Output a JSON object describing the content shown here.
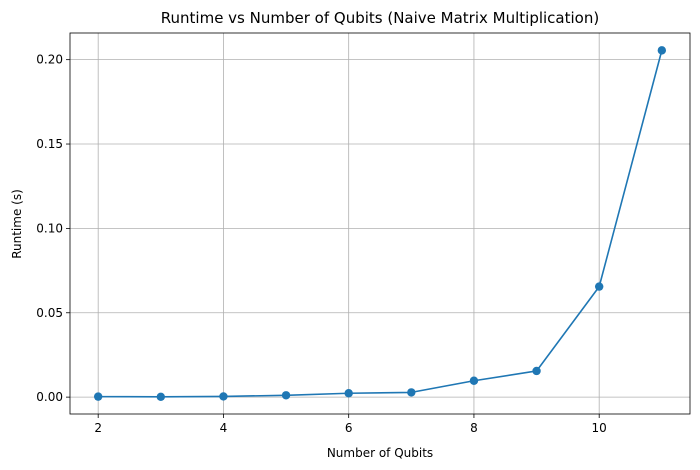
{
  "chart_data": {
    "type": "line",
    "title": "Runtime vs Number of Qubits (Naive Matrix Multiplication)",
    "xlabel": "Number of Qubits",
    "ylabel": "Runtime (s)",
    "x": [
      2,
      3,
      4,
      5,
      6,
      7,
      8,
      9,
      10,
      11
    ],
    "series": [
      {
        "values": [
          0.0003,
          0.0002,
          0.0004,
          0.0011,
          0.0023,
          0.0028,
          0.0097,
          0.0155,
          0.0655,
          0.2055
        ],
        "color": "#1f77b4",
        "marker": "circle"
      }
    ],
    "xlim": [
      1.55,
      11.45
    ],
    "ylim": [
      -0.01,
      0.2158
    ],
    "xticks": [
      2,
      4,
      6,
      8,
      10
    ],
    "xtick_labels": [
      "2",
      "4",
      "6",
      "8",
      "10"
    ],
    "yticks": [
      0.0,
      0.05,
      0.1,
      0.15,
      0.2
    ],
    "ytick_labels": [
      "0.00",
      "0.05",
      "0.10",
      "0.15",
      "0.20"
    ],
    "grid": true,
    "legend": false
  }
}
